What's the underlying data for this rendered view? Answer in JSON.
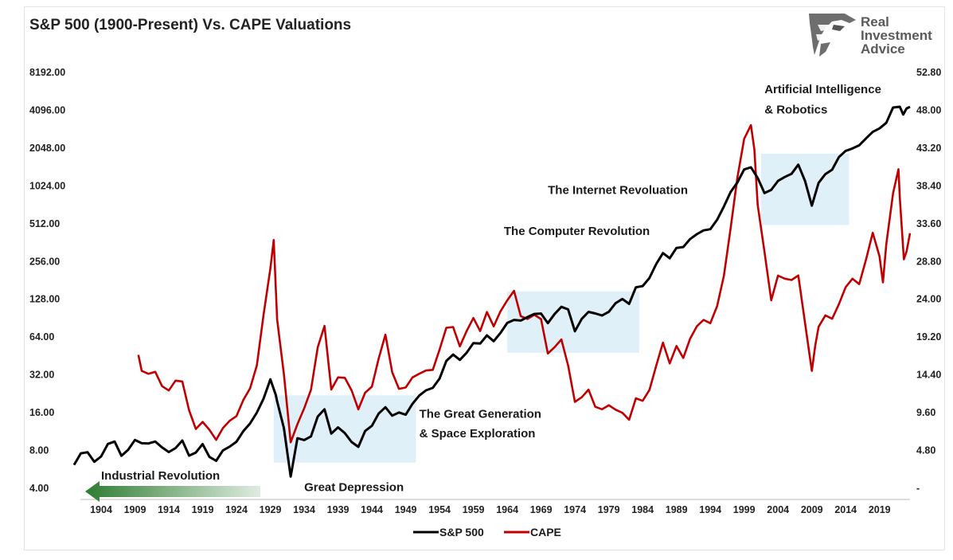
{
  "logo": {
    "lines": [
      "Real",
      "Investment",
      "Advice"
    ]
  },
  "chart_data": {
    "type": "line",
    "title": "S&P 500 (1900-Present) Vs. CAPE Valuations",
    "y_left": {
      "scale": "log2",
      "ticks": [
        "4.00",
        "8.00",
        "16.00",
        "32.00",
        "64.00",
        "128.00",
        "256.00",
        "512.00",
        "1024.00",
        "2048.00",
        "4096.00",
        "8192.00"
      ],
      "range": [
        4,
        8192
      ]
    },
    "y_right": {
      "scale": "linear",
      "ticks": [
        "-",
        "4.80",
        "9.60",
        "14.40",
        "19.20",
        "24.00",
        "28.80",
        "33.60",
        "38.40",
        "43.20",
        "48.00",
        "52.80"
      ],
      "range": [
        0,
        52.8
      ]
    },
    "x_ticks": [
      "1904",
      "1909",
      "1914",
      "1919",
      "1924",
      "1929",
      "1934",
      "1939",
      "1944",
      "1949",
      "1954",
      "1959",
      "1964",
      "1969",
      "1974",
      "1979",
      "1984",
      "1989",
      "1994",
      "1999",
      "2004",
      "2009",
      "2014",
      "2019"
    ],
    "x_range": [
      1900,
      2023.5
    ],
    "legend": {
      "placement": "bottom",
      "entries": [
        {
          "name": "S&P 500",
          "color": "#000000"
        },
        {
          "name": "CAPE",
          "color": "#c00000"
        }
      ]
    },
    "annotations": [
      {
        "text": "Industrial Revolution",
        "year": 1904,
        "value": 4.7
      },
      {
        "text": "Great Depression",
        "year": 1934,
        "value": 3.8
      },
      {
        "text": "The Great Generation",
        "year": 1951,
        "value": 14.6
      },
      {
        "text": "& Space Exploration",
        "year": 1951,
        "value": 10.2
      },
      {
        "text": "The Computer Revolution",
        "year": 1963.5,
        "value": 415
      },
      {
        "text": "The Internet Revoluation",
        "year": 1970,
        "value": 880
      },
      {
        "text": "Artificial Intelligence",
        "year": 2002,
        "value": 5600
      },
      {
        "text": "& Robotics",
        "year": 2002,
        "value": 3850
      }
    ],
    "highlight_periods": [
      {
        "x": [
          1929.5,
          1950.5
        ],
        "y": [
          6.4,
          22
        ]
      },
      {
        "x": [
          1964,
          1983.5
        ],
        "y": [
          48,
          148
        ]
      },
      {
        "x": [
          2001.5,
          2014.5
        ],
        "y": [
          500,
          1850
        ]
      }
    ],
    "series": [
      {
        "name": "S&P 500",
        "axis": "left",
        "color": "#000000",
        "points": [
          [
            1900,
            6.2
          ],
          [
            1901,
            7.7
          ],
          [
            1902,
            7.6
          ],
          [
            1903,
            6.5
          ],
          [
            1904,
            7.2
          ],
          [
            1905,
            9.0
          ],
          [
            1906,
            9.6
          ],
          [
            1907,
            7.2
          ],
          [
            1908,
            8.0
          ],
          [
            1909,
            9.8
          ],
          [
            1910,
            9.1
          ],
          [
            1911,
            9.2
          ],
          [
            1912,
            9.5
          ],
          [
            1913,
            8.3
          ],
          [
            1914,
            7.8
          ],
          [
            1915,
            8.4
          ],
          [
            1916,
            9.6
          ],
          [
            1917,
            7.4
          ],
          [
            1918,
            7.6
          ],
          [
            1919,
            8.9
          ],
          [
            1920,
            7.2
          ],
          [
            1921,
            6.6
          ],
          [
            1922,
            8.1
          ],
          [
            1923,
            8.6
          ],
          [
            1924,
            9.2
          ],
          [
            1925,
            11.5
          ],
          [
            1926,
            13.2
          ],
          [
            1927,
            16.0
          ],
          [
            1928,
            21.0
          ],
          [
            1929,
            29.0
          ],
          [
            1929.8,
            22.0
          ],
          [
            1930,
            20.0
          ],
          [
            1931,
            12.0
          ],
          [
            1932,
            5.0
          ],
          [
            1933,
            10.0
          ],
          [
            1934,
            9.5
          ],
          [
            1935,
            10.5
          ],
          [
            1936,
            15.0
          ],
          [
            1937,
            17.0
          ],
          [
            1938,
            11.0
          ],
          [
            1939,
            12.0
          ],
          [
            1940,
            11.0
          ],
          [
            1941,
            9.5
          ],
          [
            1942,
            8.5
          ],
          [
            1943,
            11.5
          ],
          [
            1944,
            12.5
          ],
          [
            1945,
            15.5
          ],
          [
            1946,
            18.0
          ],
          [
            1947,
            15.2
          ],
          [
            1948,
            16.0
          ],
          [
            1949,
            15.5
          ],
          [
            1950,
            18.5
          ],
          [
            1951,
            22.0
          ],
          [
            1952,
            24.5
          ],
          [
            1953,
            25.0
          ],
          [
            1954,
            30.0
          ],
          [
            1955,
            41.0
          ],
          [
            1956,
            46.0
          ],
          [
            1957,
            43.0
          ],
          [
            1958,
            48.0
          ],
          [
            1959,
            57.0
          ],
          [
            1960,
            57.0
          ],
          [
            1961,
            65.0
          ],
          [
            1962,
            60.0
          ],
          [
            1963,
            70.0
          ],
          [
            1964,
            82.0
          ],
          [
            1965,
            88.0
          ],
          [
            1966,
            86.0
          ],
          [
            1967,
            92.0
          ],
          [
            1968,
            100.0
          ],
          [
            1969,
            98.0
          ],
          [
            1970,
            82.0
          ],
          [
            1971,
            98.0
          ],
          [
            1972,
            110.0
          ],
          [
            1973,
            108.0
          ],
          [
            1974,
            72.0
          ],
          [
            1975,
            88.0
          ],
          [
            1976,
            102.0
          ],
          [
            1977,
            98.0
          ],
          [
            1978,
            95.0
          ],
          [
            1979,
            104.0
          ],
          [
            1980,
            118.0
          ],
          [
            1981,
            128.0
          ],
          [
            1982,
            118.0
          ],
          [
            1983,
            158.0
          ],
          [
            1984,
            166.0
          ],
          [
            1985,
            190.0
          ],
          [
            1986,
            240.0
          ],
          [
            1987,
            300.0
          ],
          [
            1988,
            270.0
          ],
          [
            1989,
            330.0
          ],
          [
            1990,
            340.0
          ],
          [
            1991,
            380.0
          ],
          [
            1992,
            420.0
          ],
          [
            1993,
            455.0
          ],
          [
            1994,
            460.0
          ],
          [
            1995,
            560.0
          ],
          [
            1996,
            700.0
          ],
          [
            1997,
            900.0
          ],
          [
            1998,
            1100.0
          ],
          [
            1999,
            1380.0
          ],
          [
            2000,
            1450.0
          ],
          [
            2001,
            1200.0
          ],
          [
            2002,
            880.0
          ],
          [
            2003,
            950.0
          ],
          [
            2004,
            1130.0
          ],
          [
            2005,
            1200.0
          ],
          [
            2006,
            1300.0
          ],
          [
            2007,
            1500.0
          ],
          [
            2008,
            1100.0
          ],
          [
            2009,
            720.0
          ],
          [
            2010,
            1080.0
          ],
          [
            2011,
            1280.0
          ],
          [
            2012,
            1390.0
          ],
          [
            2013,
            1700.0
          ],
          [
            2014,
            1950.0
          ],
          [
            2015,
            2050.0
          ],
          [
            2016,
            2150.0
          ],
          [
            2017,
            2480.0
          ],
          [
            2018,
            2720.0
          ],
          [
            2019,
            2900.0
          ],
          [
            2020,
            3300.0
          ],
          [
            2021,
            4300.0
          ],
          [
            2022,
            4400.0
          ],
          [
            2022.5,
            3800.0
          ],
          [
            2023,
            4150.0
          ],
          [
            2023.5,
            4400.0
          ]
        ]
      },
      {
        "name": "CAPE",
        "axis": "right",
        "color": "#c00000",
        "points": [
          [
            1909.5,
            17.0
          ],
          [
            1910,
            15.0
          ],
          [
            1911,
            14.4
          ],
          [
            1912,
            14.8
          ],
          [
            1913,
            13.0
          ],
          [
            1914,
            12.4
          ],
          [
            1915,
            13.8
          ],
          [
            1916,
            13.5
          ],
          [
            1917,
            9.8
          ],
          [
            1918,
            7.6
          ],
          [
            1919,
            8.4
          ],
          [
            1920,
            7.5
          ],
          [
            1921,
            6.2
          ],
          [
            1922,
            7.5
          ],
          [
            1923,
            8.6
          ],
          [
            1924,
            9.2
          ],
          [
            1925,
            11.2
          ],
          [
            1926,
            12.8
          ],
          [
            1927,
            15.5
          ],
          [
            1928,
            22.0
          ],
          [
            1929,
            28.0
          ],
          [
            1929.5,
            31.5
          ],
          [
            1930,
            21.5
          ],
          [
            1931,
            14.5
          ],
          [
            1932,
            5.7
          ],
          [
            1933,
            8.2
          ],
          [
            1934,
            10.2
          ],
          [
            1935,
            12.5
          ],
          [
            1936,
            18.0
          ],
          [
            1937,
            20.5
          ],
          [
            1938,
            12.5
          ],
          [
            1939,
            14.2
          ],
          [
            1940,
            14.0
          ],
          [
            1941,
            12.5
          ],
          [
            1942,
            10.0
          ],
          [
            1943,
            12.0
          ],
          [
            1944,
            13.0
          ],
          [
            1945,
            16.5
          ],
          [
            1946,
            19.5
          ],
          [
            1947,
            14.8
          ],
          [
            1948,
            12.5
          ],
          [
            1949,
            12.8
          ],
          [
            1950,
            14.2
          ],
          [
            1951,
            14.5
          ],
          [
            1952,
            15.0
          ],
          [
            1953,
            15.0
          ],
          [
            1954,
            17.5
          ],
          [
            1955,
            20.5
          ],
          [
            1956,
            20.5
          ],
          [
            1957,
            18.0
          ],
          [
            1958,
            20.0
          ],
          [
            1959,
            21.5
          ],
          [
            1960,
            20.0
          ],
          [
            1961,
            22.5
          ],
          [
            1962,
            20.5
          ],
          [
            1963,
            22.5
          ],
          [
            1964,
            23.8
          ],
          [
            1965,
            25.0
          ],
          [
            1966,
            22.0
          ],
          [
            1967,
            21.5
          ],
          [
            1968,
            22.0
          ],
          [
            1969,
            21.5
          ],
          [
            1970,
            17.0
          ],
          [
            1971,
            18.0
          ],
          [
            1972,
            19.0
          ],
          [
            1973,
            15.5
          ],
          [
            1974,
            11.0
          ],
          [
            1975,
            11.5
          ],
          [
            1976,
            12.5
          ],
          [
            1977,
            10.5
          ],
          [
            1978,
            10.0
          ],
          [
            1979,
            10.5
          ],
          [
            1980,
            10.0
          ],
          [
            1981,
            9.5
          ],
          [
            1982,
            8.8
          ],
          [
            1983,
            11.5
          ],
          [
            1984,
            11.0
          ],
          [
            1985,
            12.5
          ],
          [
            1986,
            15.5
          ],
          [
            1987,
            18.5
          ],
          [
            1988,
            16.0
          ],
          [
            1989,
            18.0
          ],
          [
            1990,
            16.5
          ],
          [
            1991,
            19.0
          ],
          [
            1992,
            20.5
          ],
          [
            1993,
            21.5
          ],
          [
            1994,
            21.0
          ],
          [
            1995,
            23.0
          ],
          [
            1996,
            27.0
          ],
          [
            1997,
            33.0
          ],
          [
            1998,
            39.5
          ],
          [
            1999,
            44.5
          ],
          [
            2000,
            46.0
          ],
          [
            2000.5,
            43.0
          ],
          [
            2001,
            36.0
          ],
          [
            2002,
            30.0
          ],
          [
            2003,
            24.0
          ],
          [
            2004,
            27.0
          ],
          [
            2005,
            26.5
          ],
          [
            2006,
            26.5
          ],
          [
            2007,
            27.0
          ],
          [
            2008,
            21.0
          ],
          [
            2009,
            15.0
          ],
          [
            2009.5,
            18.0
          ],
          [
            2010,
            20.5
          ],
          [
            2011,
            22.0
          ],
          [
            2012,
            21.5
          ],
          [
            2013,
            23.5
          ],
          [
            2014,
            25.5
          ],
          [
            2015,
            26.5
          ],
          [
            2016,
            26.0
          ],
          [
            2017,
            29.0
          ],
          [
            2018,
            32.5
          ],
          [
            2019,
            29.5
          ],
          [
            2019.5,
            26.0
          ],
          [
            2020,
            31.0
          ],
          [
            2021,
            37.5
          ],
          [
            2021.8,
            40.5
          ],
          [
            2022,
            37.0
          ],
          [
            2022.6,
            29.0
          ],
          [
            2023,
            30.0
          ],
          [
            2023.5,
            32.5
          ]
        ]
      }
    ]
  }
}
